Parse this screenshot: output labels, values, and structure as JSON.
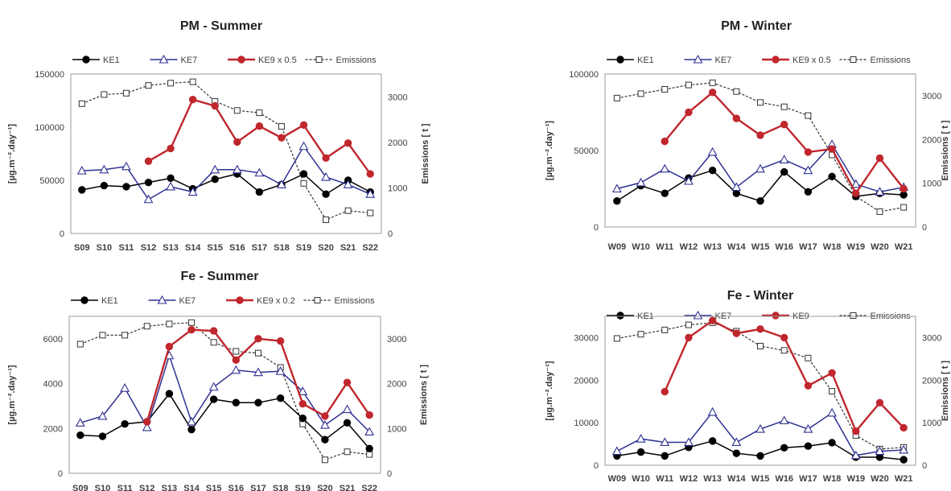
{
  "chart_data": [
    {
      "type": "line",
      "title": "PM  -  Summer",
      "ylabel": "[µg.m⁻².day⁻¹]",
      "y2label": "Emissions [ t ]",
      "ylim": [
        0,
        150000
      ],
      "yticks": [
        0,
        50000,
        100000,
        150000
      ],
      "y2lim": [
        0,
        3500
      ],
      "y2ticks": [
        0,
        1000,
        2000,
        3000
      ],
      "categories": [
        "S09",
        "S10",
        "S11",
        "S12",
        "S13",
        "S14",
        "S15",
        "S16",
        "S17",
        "S18",
        "S19",
        "S20",
        "S21",
        "S22"
      ],
      "series": [
        {
          "name": "KE1",
          "axis": "left",
          "color": "#000000",
          "marker": "filled-circle",
          "dash": false,
          "values": [
            41000,
            45000,
            44000,
            48000,
            52000,
            42000,
            51000,
            56000,
            39000,
            46000,
            56000,
            37000,
            50000,
            39000
          ]
        },
        {
          "name": "KE7",
          "axis": "left",
          "color": "#2e3192",
          "marker": "open-triangle",
          "dash": false,
          "values": [
            59000,
            60000,
            63000,
            32000,
            44000,
            39000,
            60000,
            60000,
            57000,
            46000,
            82000,
            53000,
            46000,
            37000
          ]
        },
        {
          "name": "KE9 x 0.5",
          "axis": "left",
          "color": "#c0272d",
          "marker": "filled-circle",
          "dash": false,
          "values": [
            null,
            null,
            null,
            68000,
            80000,
            126000,
            120000,
            86000,
            101000,
            90000,
            102000,
            71000,
            85000,
            56000
          ]
        },
        {
          "name": "Emissions",
          "axis": "right",
          "color": "#333333",
          "marker": "open-square",
          "dash": true,
          "values": [
            2850,
            3050,
            3080,
            3250,
            3300,
            3330,
            2900,
            2700,
            2650,
            2350,
            1100,
            300,
            500,
            450
          ]
        }
      ],
      "legend_position": "top"
    },
    {
      "type": "line",
      "title": "PM  -  Winter",
      "ylabel": "[µg.m⁻².day⁻¹]",
      "y2label": "Emissions [ t ]",
      "ylim": [
        0,
        100000
      ],
      "yticks": [
        0,
        50000,
        100000
      ],
      "y2lim": [
        0,
        3500
      ],
      "y2ticks": [
        0,
        1000,
        2000,
        3000
      ],
      "categories": [
        "W09",
        "W10",
        "W11",
        "W12",
        "W13",
        "W14",
        "W15",
        "W16",
        "W17",
        "W18",
        "W19",
        "W20",
        "W21"
      ],
      "series": [
        {
          "name": "KE1",
          "axis": "left",
          "color": "#000000",
          "marker": "filled-circle",
          "dash": false,
          "values": [
            17000,
            27000,
            22000,
            32000,
            37000,
            22000,
            17000,
            36000,
            23000,
            33000,
            20000,
            22000,
            21000
          ]
        },
        {
          "name": "KE7",
          "axis": "left",
          "color": "#2e3192",
          "marker": "open-triangle",
          "dash": false,
          "values": [
            25000,
            29000,
            38000,
            30000,
            49000,
            26000,
            38000,
            44000,
            37000,
            54000,
            28000,
            23000,
            26000
          ]
        },
        {
          "name": "KE9 x 0.5",
          "axis": "left",
          "color": "#c0272d",
          "marker": "filled-circle",
          "dash": false,
          "values": [
            null,
            null,
            56000,
            75000,
            88000,
            71000,
            60000,
            67000,
            49000,
            51000,
            22000,
            45000,
            25000
          ]
        },
        {
          "name": "Emissions",
          "axis": "right",
          "color": "#333333",
          "marker": "open-square",
          "dash": true,
          "values": [
            2950,
            3050,
            3150,
            3250,
            3300,
            3100,
            2850,
            2750,
            2550,
            1650,
            700,
            350,
            450
          ]
        }
      ],
      "legend_position": "top"
    },
    {
      "type": "line",
      "title": "Fe  -  Summer",
      "ylabel": "[µg.m⁻².day⁻¹]",
      "y2label": "Emissions [ t ]",
      "ylim": [
        0,
        7000
      ],
      "yticks": [
        0,
        2000,
        4000,
        6000
      ],
      "y2lim": [
        0,
        3500
      ],
      "y2ticks": [
        0,
        1000,
        2000,
        3000
      ],
      "categories": [
        "S09",
        "S10",
        "S11",
        "S12",
        "S13",
        "S14",
        "S15",
        "S16",
        "S17",
        "S18",
        "S19",
        "S20",
        "S21",
        "S22"
      ],
      "series": [
        {
          "name": "KE1",
          "axis": "left",
          "color": "#000000",
          "marker": "filled-circle",
          "dash": false,
          "values": [
            1700,
            1650,
            2200,
            2300,
            3550,
            1950,
            3300,
            3150,
            3150,
            3350,
            2450,
            1500,
            2250,
            1100
          ]
        },
        {
          "name": "KE7",
          "axis": "left",
          "color": "#2e3192",
          "marker": "open-triangle",
          "dash": false,
          "values": [
            2250,
            2550,
            3800,
            2050,
            5250,
            2300,
            3850,
            4600,
            4500,
            4550,
            3650,
            2150,
            2850,
            1850
          ]
        },
        {
          "name": "KE9 x 0.2",
          "axis": "left",
          "color": "#c0272d",
          "marker": "filled-circle",
          "dash": false,
          "values": [
            null,
            null,
            null,
            2300,
            5650,
            6400,
            6350,
            5050,
            6000,
            5900,
            3100,
            2550,
            4050,
            2600
          ]
        },
        {
          "name": "Emissions",
          "axis": "right",
          "color": "#333333",
          "marker": "open-square",
          "dash": true,
          "values": [
            2880,
            3080,
            3080,
            3280,
            3330,
            3360,
            2920,
            2720,
            2680,
            2360,
            1100,
            300,
            480,
            420
          ]
        }
      ],
      "legend_position": "top"
    },
    {
      "type": "line",
      "title": "Fe -  Winter",
      "ylabel": "[µg.m⁻².day⁻¹]",
      "y2label": "Emissions [ t ]",
      "ylim": [
        0,
        35000
      ],
      "yticks": [
        0,
        10000,
        20000,
        30000
      ],
      "y2lim": [
        0,
        3500
      ],
      "y2ticks": [
        0,
        1000,
        2000,
        3000
      ],
      "categories": [
        "W09",
        "W10",
        "W11",
        "W12",
        "W13",
        "W14",
        "W15",
        "W16",
        "W17",
        "W18",
        "W19",
        "W20",
        "W21"
      ],
      "series": [
        {
          "name": "KE1",
          "axis": "left",
          "color": "#000000",
          "marker": "filled-circle",
          "dash": false,
          "values": [
            2200,
            3100,
            2200,
            4200,
            5700,
            2800,
            2200,
            4100,
            4500,
            5300,
            1900,
            1900,
            1300
          ]
        },
        {
          "name": "KE7",
          "axis": "left",
          "color": "#2e3192",
          "marker": "open-triangle",
          "dash": false,
          "values": [
            3300,
            6200,
            5400,
            5400,
            12500,
            5400,
            8500,
            10500,
            8500,
            12300,
            2300,
            3300,
            3600
          ]
        },
        {
          "name": "KE9",
          "axis": "left",
          "color": "#c0272d",
          "marker": "filled-circle",
          "dash": false,
          "values": [
            null,
            null,
            17300,
            30000,
            34000,
            31000,
            32000,
            30000,
            18700,
            21700,
            8000,
            14700,
            8800
          ]
        },
        {
          "name": "Emissions",
          "axis": "right",
          "color": "#333333",
          "marker": "open-square",
          "dash": true,
          "values": [
            2980,
            3080,
            3180,
            3300,
            3350,
            3150,
            2800,
            2700,
            2520,
            1740,
            700,
            380,
            420
          ]
        }
      ],
      "legend_position": "top"
    }
  ]
}
